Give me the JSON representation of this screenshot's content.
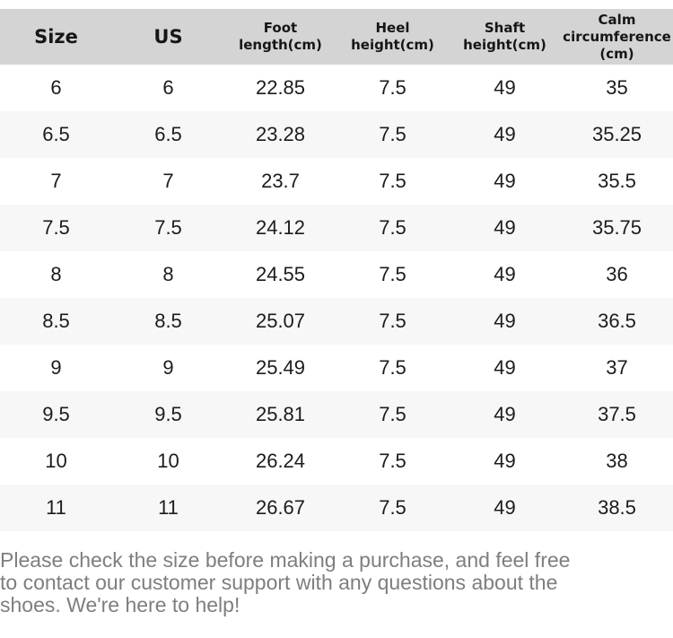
{
  "chart_data": {
    "type": "table",
    "columns": [
      "Size",
      "US",
      "Foot length(cm)",
      "Heel height(cm)",
      "Shaft height(cm)",
      "Calm circumference(cm)"
    ],
    "rows": [
      [
        "6",
        "6",
        "22.85",
        "7.5",
        "49",
        "35"
      ],
      [
        "6.5",
        "6.5",
        "23.28",
        "7.5",
        "49",
        "35.25"
      ],
      [
        "7",
        "7",
        "23.7",
        "7.5",
        "49",
        "35.5"
      ],
      [
        "7.5",
        "7.5",
        "24.12",
        "7.5",
        "49",
        "35.75"
      ],
      [
        "8",
        "8",
        "24.55",
        "7.5",
        "49",
        "36"
      ],
      [
        "8.5",
        "8.5",
        "25.07",
        "7.5",
        "49",
        "36.5"
      ],
      [
        "9",
        "9",
        "25.49",
        "7.5",
        "49",
        "37"
      ],
      [
        "9.5",
        "9.5",
        "25.81",
        "7.5",
        "49",
        "37.5"
      ],
      [
        "10",
        "10",
        "26.24",
        "7.5",
        "49",
        "38"
      ],
      [
        "11",
        "11",
        "26.67",
        "7.5",
        "49",
        "38.5"
      ]
    ],
    "layout": {
      "header_background": "#d4d4d4",
      "alt_row_background": "#f7f7f7",
      "cell_text_color": "#1c1c1c",
      "grid": "none"
    }
  },
  "note": {
    "text": "Please check the size before making a purchase, and feel free to contact our customer support with any questions about the shoes. We're here to help!",
    "lines": [
      "Please check the size before making a purchase, and feel free",
      "to contact our customer support with any questions about the",
      "shoes. We're here to help!"
    ],
    "text_color": "#7e7e7e"
  }
}
